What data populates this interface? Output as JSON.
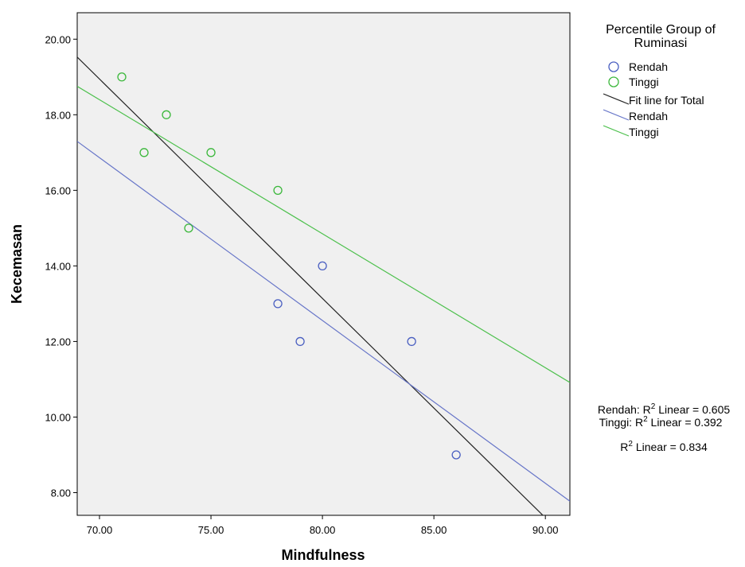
{
  "chart_data": {
    "type": "scatter",
    "xlabel": "Mindfulness",
    "ylabel": "Kecemasan",
    "xlim": [
      69.0,
      91.1
    ],
    "ylim": [
      7.4,
      20.7
    ],
    "x_ticks": [
      70,
      75,
      80,
      85,
      90
    ],
    "y_ticks": [
      8,
      10,
      12,
      14,
      16,
      18,
      20
    ],
    "x_tick_labels": [
      "70.00",
      "75.00",
      "80.00",
      "85.00",
      "90.00"
    ],
    "y_tick_labels": [
      "8.00",
      "10.00",
      "12.00",
      "14.00",
      "16.00",
      "18.00",
      "20.00"
    ],
    "grid": false,
    "legend_position": "right",
    "legend": {
      "title_line1": "Percentile Group of",
      "title_line2": "Ruminasi",
      "point_rendah": "Rendah",
      "point_tinggi": "Tinggi",
      "fit_total": "Fit line for Total",
      "fit_rendah": "Rendah",
      "fit_tinggi": "Tinggi"
    },
    "series": [
      {
        "name": "Rendah",
        "color": "#4a5fc1",
        "points": [
          [
            78,
            13
          ],
          [
            79,
            12
          ],
          [
            80,
            14
          ],
          [
            84,
            12
          ],
          [
            86,
            9
          ]
        ]
      },
      {
        "name": "Tinggi",
        "color": "#3cb83c",
        "points": [
          [
            71,
            19
          ],
          [
            72,
            17
          ],
          [
            73,
            18
          ],
          [
            74,
            15
          ],
          [
            75,
            17
          ],
          [
            78,
            16
          ]
        ]
      }
    ],
    "fit_lines": [
      {
        "name": "Fit line for Total",
        "color": "#222222",
        "slope": -0.5805,
        "intercept": 59.58
      },
      {
        "name": "Rendah",
        "color": "#6675c8",
        "slope": -0.4308,
        "intercept": 47.02
      },
      {
        "name": "Tinggi",
        "color": "#4cc04c",
        "slope": -0.3546,
        "intercept": 43.22
      }
    ],
    "annotations": {
      "rendah_prefix": "Rendah: R",
      "tinggi_prefix": "Tinggi: R",
      "total_prefix": "R",
      "superscript": "2",
      "rendah_suffix": " Linear = 0.605",
      "tinggi_suffix": " Linear = 0.392",
      "total_suffix": " Linear = 0.834"
    },
    "colors": {
      "plot_background": "#f0f0f0",
      "rendah": "#4a5fc1",
      "tinggi": "#3cb83c",
      "total": "#222222"
    }
  }
}
